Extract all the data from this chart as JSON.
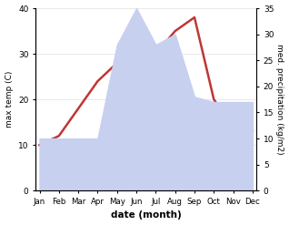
{
  "months": [
    "Jan",
    "Feb",
    "Mar",
    "Apr",
    "May",
    "Jun",
    "Jul",
    "Aug",
    "Sep",
    "Oct",
    "Nov",
    "Dec"
  ],
  "temperature": [
    10,
    12,
    18,
    24,
    28,
    33,
    30,
    35,
    38,
    20,
    14,
    13
  ],
  "precipitation": [
    10,
    10,
    10,
    10,
    28,
    35,
    28,
    30,
    18,
    17,
    17,
    17
  ],
  "temp_color": "#c03535",
  "precip_fill_color": "#c8d0f0",
  "xlabel": "date (month)",
  "ylabel_left": "max temp (C)",
  "ylabel_right": "med. precipitation (kg/m2)",
  "ylim_left": [
    0,
    40
  ],
  "ylim_right": [
    0,
    35
  ],
  "yticks_left": [
    0,
    10,
    20,
    30,
    40
  ],
  "yticks_right": [
    0,
    5,
    10,
    15,
    20,
    25,
    30,
    35
  ],
  "bg_color": "#ffffff",
  "line_width": 1.8
}
